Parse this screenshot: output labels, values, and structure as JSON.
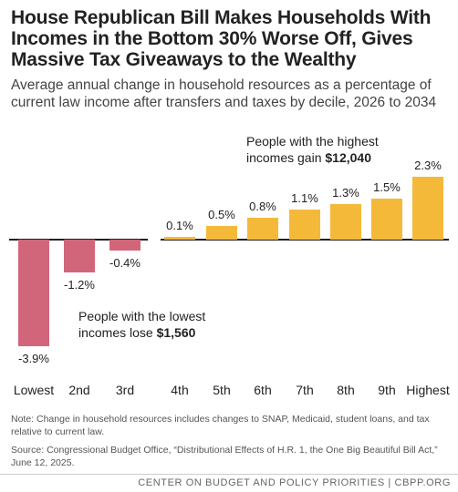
{
  "title": "House Republican Bill Makes Households With Incomes in the Bottom 30% Worse Off, Gives Massive Tax Giveaways to the Wealthy",
  "subtitle": "Average annual change in household resources as a percentage of current law income after transfers and taxes by decile, 2026 to 2034",
  "chart_data": {
    "type": "bar",
    "categories": [
      "Lowest",
      "2nd",
      "3rd",
      "4th",
      "5th",
      "6th",
      "7th",
      "8th",
      "9th",
      "Highest"
    ],
    "values": [
      -3.9,
      -1.2,
      -0.4,
      0.1,
      0.5,
      0.8,
      1.1,
      1.3,
      1.5,
      2.3
    ],
    "value_labels": [
      "-3.9%",
      "-1.2%",
      "-0.4%",
      "0.1%",
      "0.5%",
      "0.8%",
      "1.1%",
      "1.3%",
      "1.5%",
      "2.3%"
    ],
    "ylim": [
      -4.3,
      2.8
    ],
    "grid": false,
    "colors": {
      "negative": "#d1667a",
      "positive": "#f5b93a"
    },
    "annotations": [
      {
        "lines": [
          [
            "People with the highest",
            ""
          ],
          [
            "incomes gain ",
            "$12,040"
          ]
        ],
        "target": "Highest"
      },
      {
        "lines": [
          [
            "People with the lowest",
            ""
          ],
          [
            "incomes lose ",
            "$1,560"
          ]
        ],
        "target": "Lowest"
      }
    ]
  },
  "notes": {
    "note": "Note: Change in household resources includes changes to SNAP, Medicaid, student loans, and tax relative to current law.",
    "source": "Source: Congressional Budget Office, “Distributional Effects of H.R. 1, the One Big Beautiful Bill Act,” June 12, 2025."
  },
  "footer": "CENTER ON BUDGET AND POLICY PRIORITIES | CBPP.ORG"
}
